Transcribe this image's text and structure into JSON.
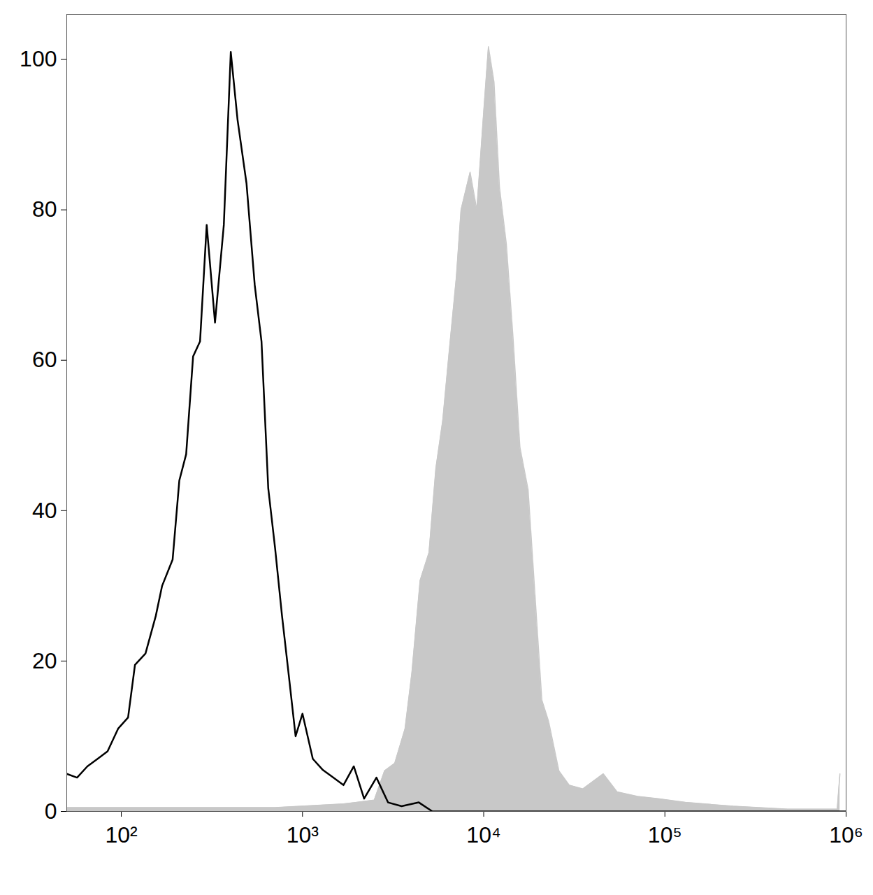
{
  "chart_data": {
    "type": "line",
    "log": "x",
    "grid": false,
    "xlim": [
      50,
      1000000
    ],
    "ylim": [
      0,
      106
    ],
    "xticks": [
      {
        "value": 100,
        "label": "10²"
      },
      {
        "value": 1000,
        "label": "10³"
      },
      {
        "value": 10000,
        "label": "10⁴"
      },
      {
        "value": 100000,
        "label": "10⁵"
      },
      {
        "value": 1000000,
        "label": "10⁶"
      }
    ],
    "yticks": [
      0,
      20,
      40,
      60,
      80,
      100
    ],
    "series": [
      {
        "type": "area",
        "color": "#c8c8c8",
        "x": [
          50,
          296,
          706,
          1683,
          2489,
          2837,
          3228,
          3681,
          4018,
          4457,
          4989,
          5445,
          5943,
          6471,
          7063,
          7499,
          8414,
          9165,
          10000,
          10620,
          11400,
          12220,
          13330,
          14520,
          15850,
          17580,
          19190,
          20940,
          22800,
          26000,
          29650,
          35240,
          45710,
          54450,
          70630,
          91620,
          129700,
          238200,
          477500,
          893300,
          924700
        ],
        "values": [
          0.5,
          0.5,
          0.5,
          1,
          1.5,
          5.4,
          6.4,
          11,
          18.5,
          30.7,
          34.4,
          45.6,
          52,
          61.5,
          71,
          80,
          85,
          80,
          93,
          101.7,
          97,
          83,
          75.5,
          63,
          48.4,
          42.8,
          28.8,
          14.8,
          12,
          5.4,
          3.5,
          3,
          5,
          2.6,
          2,
          1.7,
          1.2,
          0.7,
          0.3,
          0.3,
          5
        ]
      },
      {
        "type": "line",
        "color": "#000000",
        "x": [
          50,
          57,
          65,
          74,
          84,
          96,
          109,
          119,
          136,
          155,
          168,
          192,
          209,
          228,
          249,
          272,
          296,
          329,
          368,
          402,
          438,
          491,
          545,
          594,
          647,
          706,
          771,
          841,
          916,
          1000,
          1140,
          1297,
          1479,
          1683,
          1919,
          2188,
          2559,
          2965,
          3524,
          4385,
          5212,
          22800,
          129700,
          1000000
        ],
        "values": [
          5,
          4.5,
          6,
          7,
          8,
          11,
          12.5,
          19.5,
          21,
          26,
          30,
          33.5,
          44,
          47.5,
          60.5,
          62.5,
          78,
          65,
          78,
          101,
          92,
          83.5,
          70,
          62.5,
          43,
          35,
          26,
          18,
          10,
          13,
          7,
          5.5,
          4.5,
          3.5,
          6,
          1.7,
          4.5,
          1.2,
          0.7,
          1.2,
          0,
          0,
          0,
          0
        ]
      }
    ]
  }
}
